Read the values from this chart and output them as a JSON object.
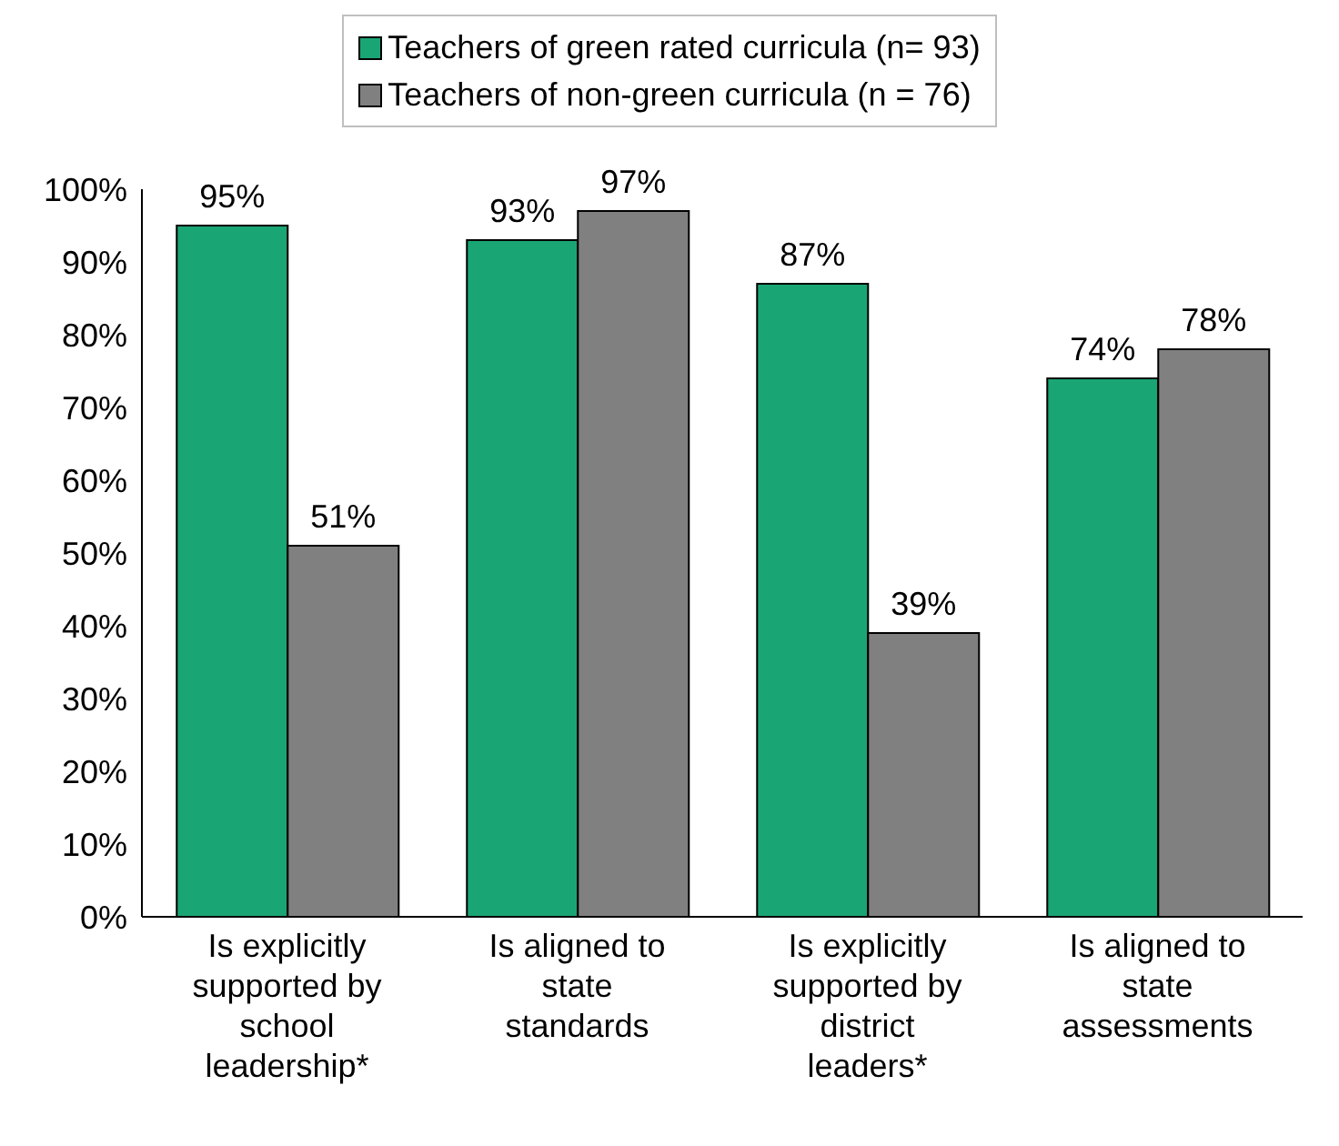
{
  "chart_data": {
    "type": "bar",
    "categories": [
      "Is explicitly supported by school leadership*",
      "Is aligned to state standards",
      "Is explicitly supported by district leaders*",
      "Is aligned to state assessments"
    ],
    "series": [
      {
        "name": "Teachers of green rated curricula (n= 93)",
        "color": "#1aa574",
        "values": [
          95,
          93,
          87,
          74
        ],
        "value_labels": [
          "95%",
          "93%",
          "87%",
          "74%"
        ]
      },
      {
        "name": "Teachers of non-green curricula (n = 76)",
        "color": "#808080",
        "values": [
          51,
          97,
          39,
          78
        ],
        "value_labels": [
          "51%",
          "97%",
          "39%",
          "78%"
        ]
      }
    ],
    "ylim": [
      0,
      100
    ],
    "yticks": [
      {
        "value": 0,
        "label": "0%"
      },
      {
        "value": 10,
        "label": "10%"
      },
      {
        "value": 20,
        "label": "20%"
      },
      {
        "value": 30,
        "label": "30%"
      },
      {
        "value": 40,
        "label": "40%"
      },
      {
        "value": 50,
        "label": "50%"
      },
      {
        "value": 60,
        "label": "60%"
      },
      {
        "value": 70,
        "label": "70%"
      },
      {
        "value": 80,
        "label": "80%"
      },
      {
        "value": 90,
        "label": "90%"
      },
      {
        "value": 100,
        "label": "100%"
      }
    ],
    "grid": false,
    "legend": "top"
  }
}
